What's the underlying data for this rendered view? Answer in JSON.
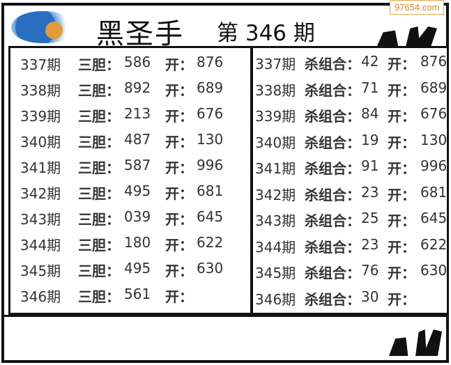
{
  "watermark": "97654.com",
  "header": {
    "title": "黑圣手",
    "issue": "第 346 期"
  },
  "left_panel": {
    "label": "三胆：",
    "open_label": "开：",
    "rows": [
      {
        "period": "337期",
        "value": "586",
        "open": "876"
      },
      {
        "period": "338期",
        "value": "892",
        "open": "689"
      },
      {
        "period": "339期",
        "value": "213",
        "open": "676"
      },
      {
        "period": "340期",
        "value": "487",
        "open": "130"
      },
      {
        "period": "341期",
        "value": "587",
        "open": "996"
      },
      {
        "period": "342期",
        "value": "495",
        "open": "681"
      },
      {
        "period": "343期",
        "value": "039",
        "open": "645"
      },
      {
        "period": "344期",
        "value": "180",
        "open": "622"
      },
      {
        "period": "345期",
        "value": "495",
        "open": "630"
      },
      {
        "period": "346期",
        "value": "561",
        "open": ""
      }
    ]
  },
  "right_panel": {
    "label": "杀组合：",
    "open_label": "开：",
    "rows": [
      {
        "period": "337期",
        "value": "42",
        "open": "876"
      },
      {
        "period": "338期",
        "value": "71",
        "open": "689"
      },
      {
        "period": "339期",
        "value": "84",
        "open": "676"
      },
      {
        "period": "340期",
        "value": "19",
        "open": "130"
      },
      {
        "period": "341期",
        "value": "91",
        "open": "996"
      },
      {
        "period": "342期",
        "value": "23",
        "open": "681"
      },
      {
        "period": "343期",
        "value": "25",
        "open": "645"
      },
      {
        "period": "344期",
        "value": "23",
        "open": "622"
      },
      {
        "period": "345期",
        "value": "76",
        "open": "630"
      },
      {
        "period": "346期",
        "value": "30",
        "open": ""
      }
    ]
  }
}
